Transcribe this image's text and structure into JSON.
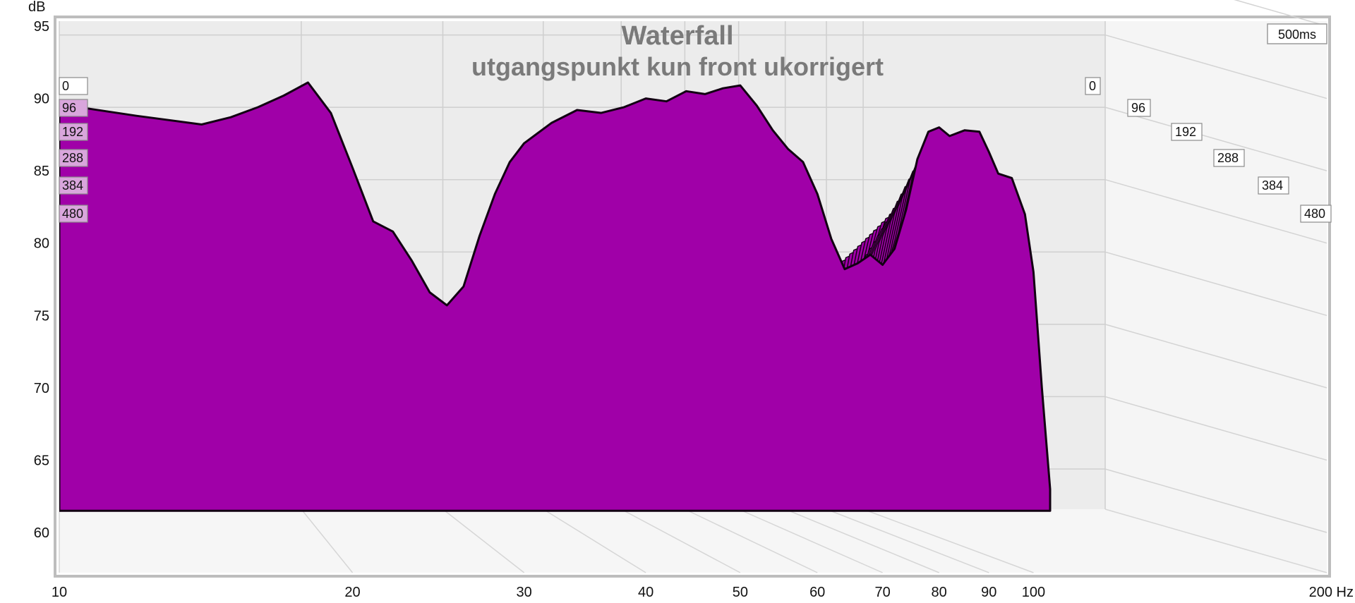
{
  "chart_data": {
    "type": "waterfall",
    "title": "Waterfall",
    "subtitle": "utgangspunkt kun front ukorrigert",
    "ylabel": "dB",
    "xlabel": "Hz",
    "ylim": [
      57,
      96
    ],
    "xlim": [
      10,
      200
    ],
    "x_scale": "log",
    "y_ticks": [
      95,
      90,
      85,
      80,
      75,
      70,
      65,
      60
    ],
    "x_ticks": [
      "10",
      "20",
      "30",
      "40",
      "50",
      "60",
      "70",
      "80",
      "90",
      "100",
      "200 Hz"
    ],
    "x_tick_values": [
      10,
      20,
      30,
      40,
      50,
      60,
      70,
      80,
      90,
      100,
      200
    ],
    "time_window_label": "500ms",
    "time_slices_ms": [
      "0",
      "96",
      "192",
      "288",
      "384",
      "480"
    ],
    "grid": true,
    "fill_color": "#a000a8",
    "front_slice_db": {
      "hz": [
        10,
        12,
        14,
        15,
        16,
        17,
        18,
        19,
        20,
        21,
        22,
        23,
        24,
        25,
        26,
        27,
        28,
        29,
        30,
        32,
        34,
        36,
        38,
        40,
        42,
        44,
        46,
        48,
        50,
        52,
        54,
        56,
        58,
        60,
        62,
        64,
        66,
        68,
        70,
        72,
        74,
        76,
        78,
        80,
        82,
        85,
        88,
        90,
        92,
        95,
        98,
        100,
        102,
        104
      ],
      "db": [
        89.6,
        88.8,
        88.2,
        88.7,
        89.4,
        90.2,
        91.1,
        89.0,
        85.2,
        81.5,
        80.8,
        78.8,
        76.6,
        75.7,
        77.0,
        80.5,
        83.4,
        85.6,
        86.9,
        88.3,
        89.2,
        89.0,
        89.4,
        90.0,
        89.8,
        90.5,
        90.3,
        90.7,
        90.9,
        89.5,
        87.8,
        86.5,
        85.6,
        83.4,
        80.3,
        78.2,
        78.6,
        79.2,
        78.5,
        79.6,
        82.3,
        85.8,
        87.7,
        88.0,
        87.4,
        87.8,
        87.7,
        86.3,
        84.8,
        84.5,
        82.0,
        78.0,
        70.0,
        63.0
      ]
    }
  }
}
